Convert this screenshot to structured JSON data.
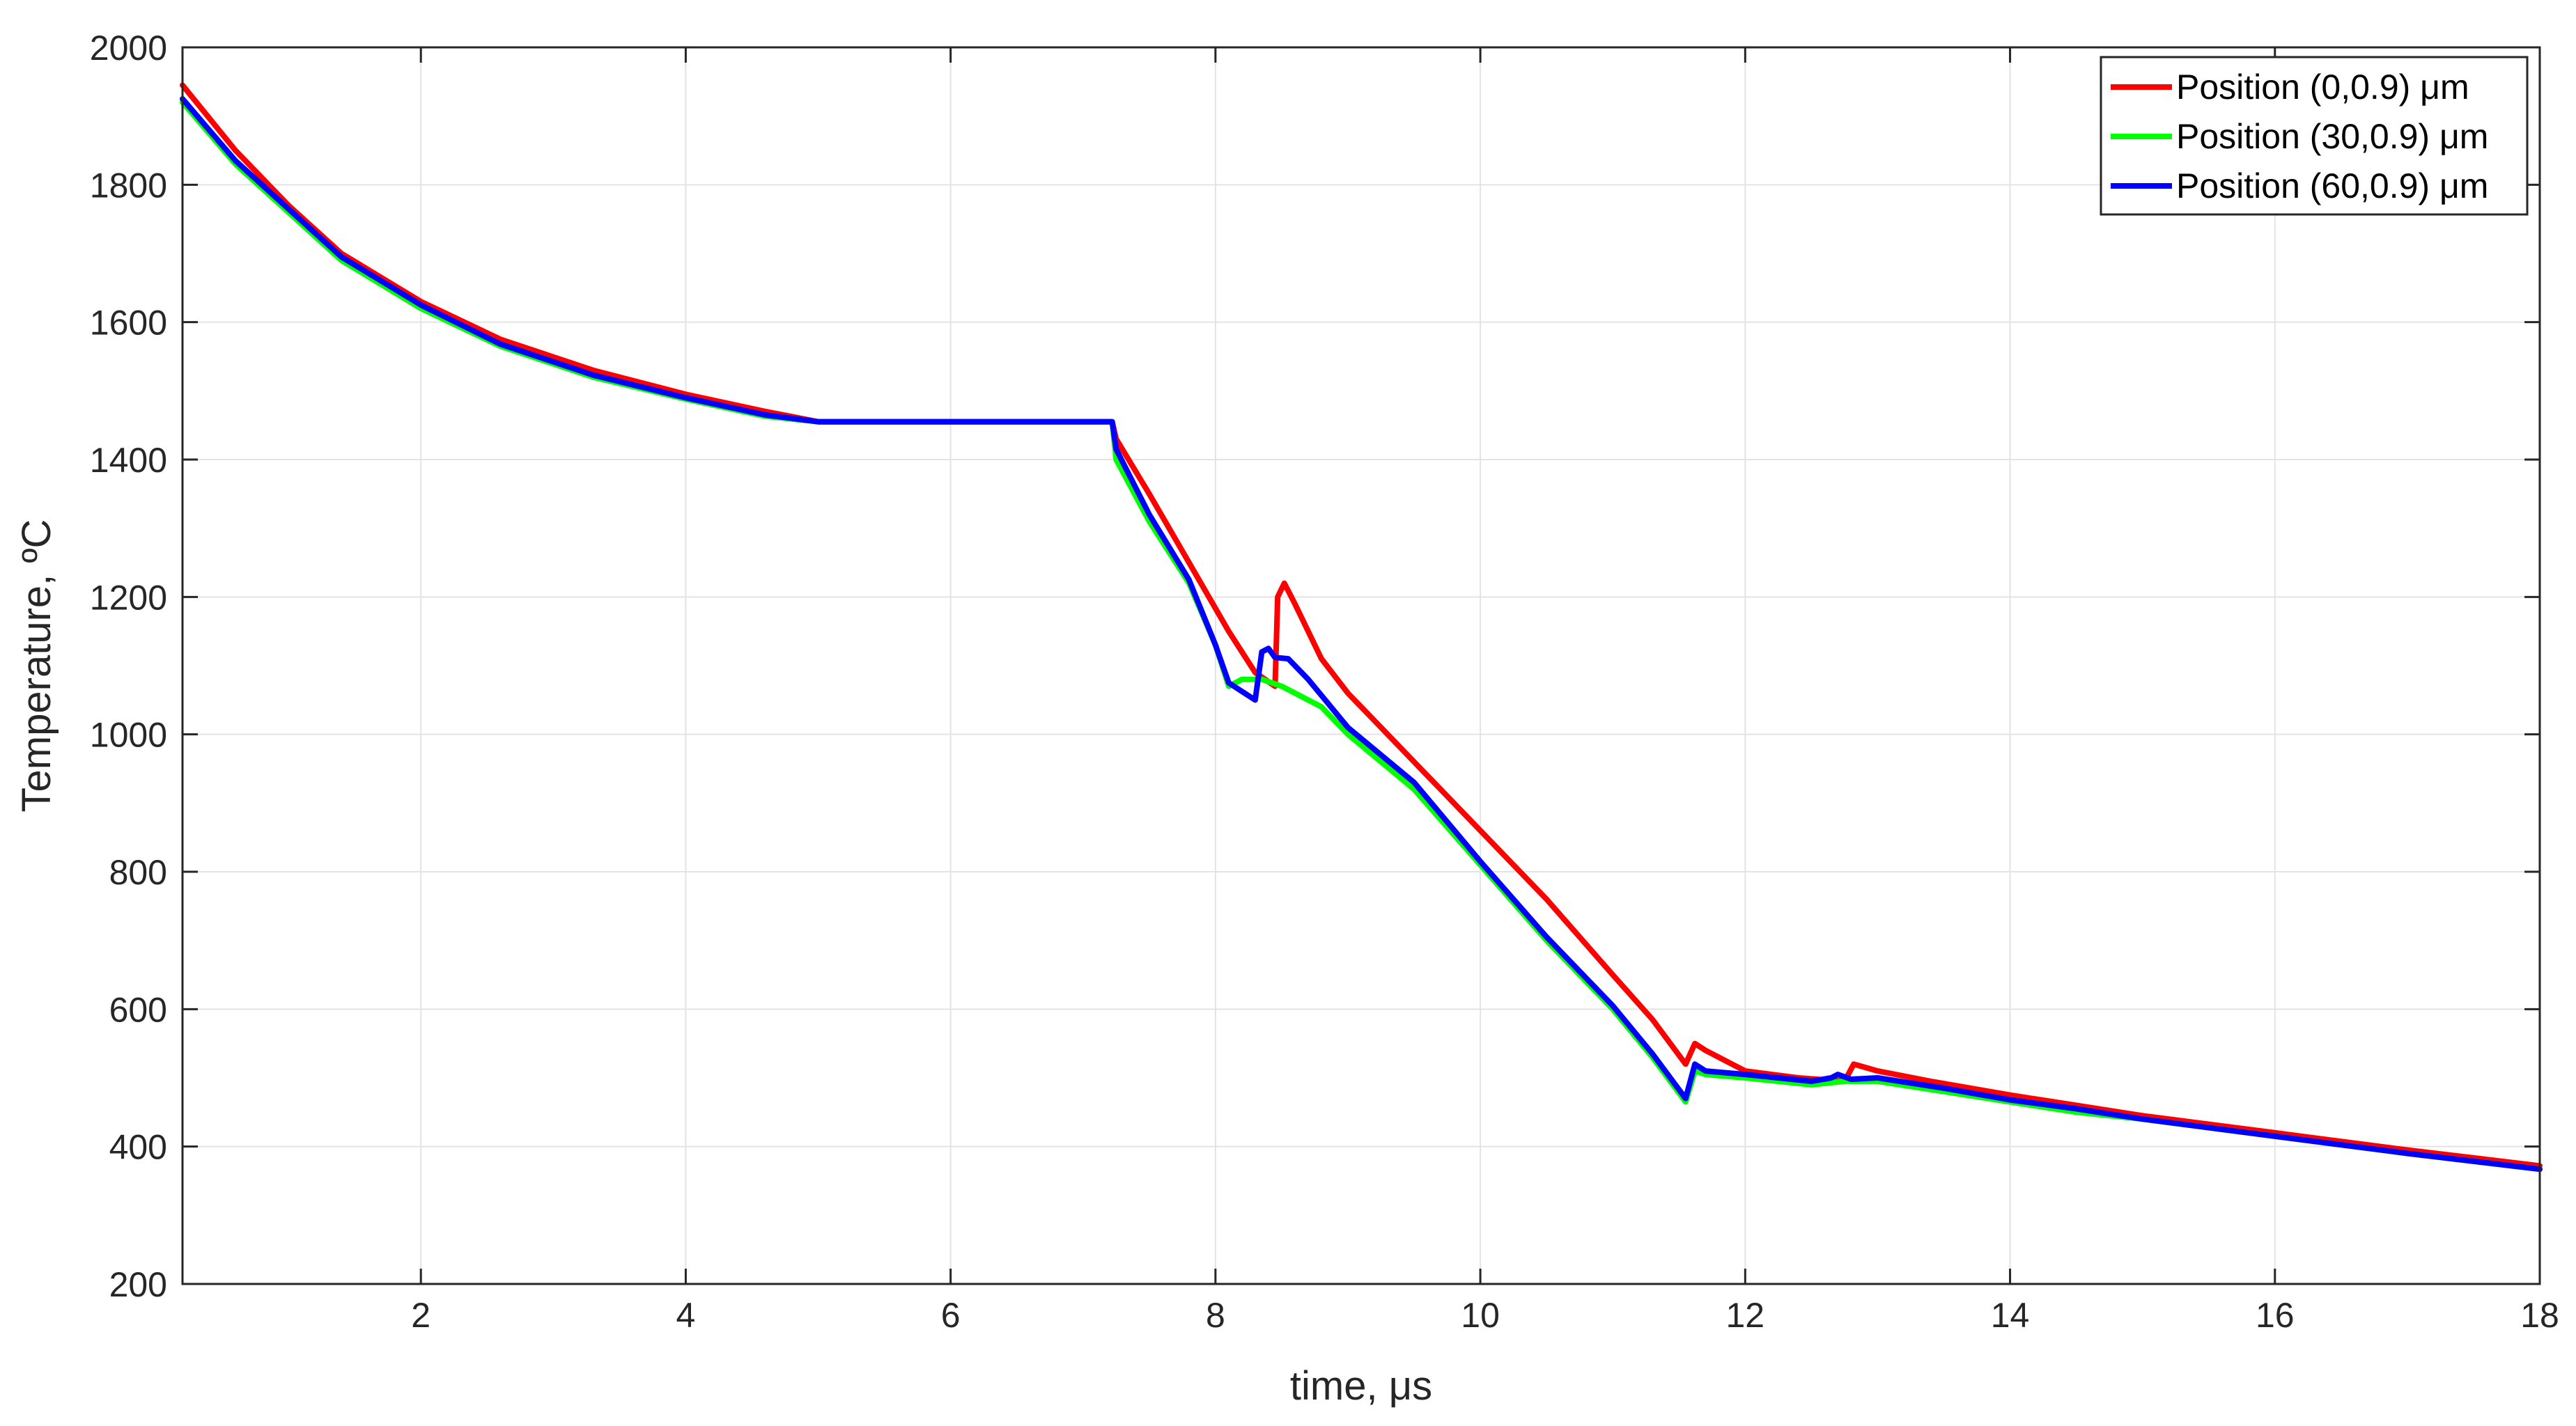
{
  "chart_data": {
    "type": "line",
    "title": "",
    "xlabel": "time, μs",
    "ylabel": "Temperature, ºC",
    "xlim": [
      0.2,
      18
    ],
    "ylim": [
      200,
      2000
    ],
    "xticks": [
      "2",
      "4",
      "6",
      "8",
      "10",
      "12",
      "14",
      "16",
      "18"
    ],
    "yticks": [
      "200",
      "400",
      "600",
      "800",
      "1000",
      "1200",
      "1400",
      "1600",
      "1800",
      "2000"
    ],
    "grid": true,
    "legend_position": "top-right",
    "series": [
      {
        "name": "Position (0,0.9) μm",
        "color": "#ff0000",
        "points": [
          [
            0.2,
            1945
          ],
          [
            0.6,
            1850
          ],
          [
            1.0,
            1770
          ],
          [
            1.4,
            1700
          ],
          [
            2.0,
            1630
          ],
          [
            2.6,
            1575
          ],
          [
            3.3,
            1530
          ],
          [
            4.0,
            1495
          ],
          [
            4.6,
            1470
          ],
          [
            5.0,
            1455
          ],
          [
            6.0,
            1455
          ],
          [
            7.0,
            1455
          ],
          [
            7.22,
            1455
          ],
          [
            7.25,
            1430
          ],
          [
            7.5,
            1350
          ],
          [
            7.8,
            1250
          ],
          [
            8.1,
            1150
          ],
          [
            8.3,
            1090
          ],
          [
            8.45,
            1070
          ],
          [
            8.47,
            1200
          ],
          [
            8.52,
            1220
          ],
          [
            8.6,
            1190
          ],
          [
            8.8,
            1110
          ],
          [
            9.0,
            1060
          ],
          [
            9.2,
            1020
          ],
          [
            9.5,
            960
          ],
          [
            10.0,
            860
          ],
          [
            10.5,
            760
          ],
          [
            11.0,
            650
          ],
          [
            11.3,
            585
          ],
          [
            11.55,
            520
          ],
          [
            11.62,
            550
          ],
          [
            11.7,
            540
          ],
          [
            12.0,
            510
          ],
          [
            12.4,
            500
          ],
          [
            12.75,
            495
          ],
          [
            12.82,
            520
          ],
          [
            13.0,
            510
          ],
          [
            13.4,
            495
          ],
          [
            14.0,
            475
          ],
          [
            14.5,
            460
          ],
          [
            15.0,
            445
          ],
          [
            16.0,
            420
          ],
          [
            17.0,
            395
          ],
          [
            18.0,
            372
          ]
        ]
      },
      {
        "name": "Position (30,0.9) μm",
        "color": "#00ff00",
        "points": [
          [
            0.2,
            1920
          ],
          [
            0.6,
            1830
          ],
          [
            1.0,
            1760
          ],
          [
            1.4,
            1690
          ],
          [
            2.0,
            1620
          ],
          [
            2.6,
            1565
          ],
          [
            3.3,
            1520
          ],
          [
            4.0,
            1488
          ],
          [
            4.6,
            1463
          ],
          [
            5.0,
            1455
          ],
          [
            6.0,
            1455
          ],
          [
            7.0,
            1455
          ],
          [
            7.22,
            1455
          ],
          [
            7.25,
            1400
          ],
          [
            7.5,
            1310
          ],
          [
            7.8,
            1220
          ],
          [
            8.0,
            1130
          ],
          [
            8.1,
            1070
          ],
          [
            8.2,
            1080
          ],
          [
            8.35,
            1080
          ],
          [
            8.5,
            1070
          ],
          [
            8.8,
            1040
          ],
          [
            9.0,
            1000
          ],
          [
            9.5,
            920
          ],
          [
            10.0,
            810
          ],
          [
            10.5,
            700
          ],
          [
            11.0,
            600
          ],
          [
            11.3,
            530
          ],
          [
            11.55,
            465
          ],
          [
            11.62,
            510
          ],
          [
            11.7,
            505
          ],
          [
            12.0,
            500
          ],
          [
            12.5,
            490
          ],
          [
            12.75,
            495
          ],
          [
            13.0,
            495
          ],
          [
            13.5,
            480
          ],
          [
            14.0,
            465
          ],
          [
            14.5,
            450
          ],
          [
            15.0,
            440
          ],
          [
            16.0,
            415
          ],
          [
            17.0,
            390
          ],
          [
            18.0,
            367
          ]
        ]
      },
      {
        "name": "Position (60,0.9) μm",
        "color": "#0000ff",
        "points": [
          [
            0.2,
            1925
          ],
          [
            0.6,
            1835
          ],
          [
            1.0,
            1765
          ],
          [
            1.4,
            1695
          ],
          [
            2.0,
            1625
          ],
          [
            2.6,
            1568
          ],
          [
            3.3,
            1523
          ],
          [
            4.0,
            1490
          ],
          [
            4.6,
            1465
          ],
          [
            5.0,
            1455
          ],
          [
            6.0,
            1455
          ],
          [
            7.0,
            1455
          ],
          [
            7.22,
            1455
          ],
          [
            7.25,
            1415
          ],
          [
            7.5,
            1320
          ],
          [
            7.8,
            1225
          ],
          [
            8.0,
            1130
          ],
          [
            8.1,
            1075
          ],
          [
            8.3,
            1050
          ],
          [
            8.35,
            1120
          ],
          [
            8.4,
            1125
          ],
          [
            8.45,
            1112
          ],
          [
            8.55,
            1110
          ],
          [
            8.7,
            1080
          ],
          [
            9.0,
            1010
          ],
          [
            9.5,
            930
          ],
          [
            10.0,
            815
          ],
          [
            10.5,
            705
          ],
          [
            11.0,
            605
          ],
          [
            11.3,
            535
          ],
          [
            11.55,
            470
          ],
          [
            11.62,
            520
          ],
          [
            11.7,
            510
          ],
          [
            12.0,
            505
          ],
          [
            12.5,
            495
          ],
          [
            12.65,
            500
          ],
          [
            12.7,
            505
          ],
          [
            12.8,
            498
          ],
          [
            13.0,
            500
          ],
          [
            13.5,
            485
          ],
          [
            14.0,
            468
          ],
          [
            14.5,
            455
          ],
          [
            15.0,
            440
          ],
          [
            16.0,
            415
          ],
          [
            17.0,
            390
          ],
          [
            18.0,
            367
          ]
        ]
      }
    ]
  }
}
